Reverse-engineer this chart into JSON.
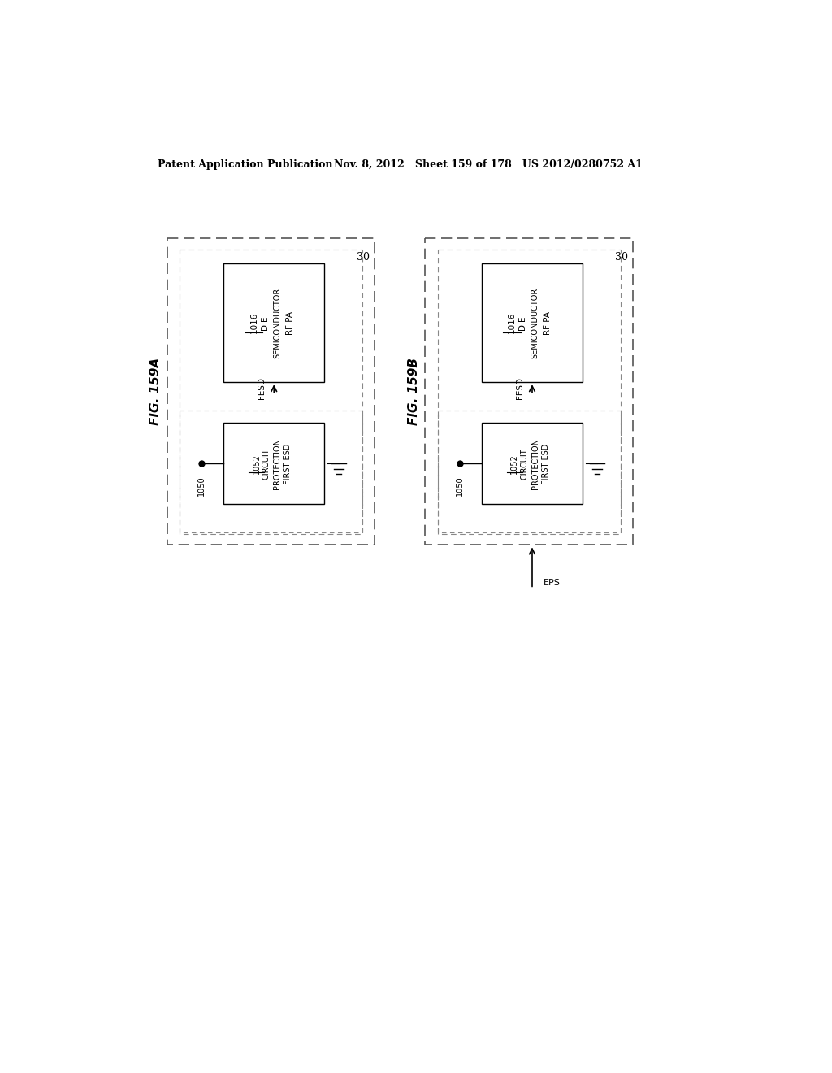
{
  "header_left": "Patent Application Publication",
  "header_right": "Nov. 8, 2012   Sheet 159 of 178   US 2012/0280752 A1",
  "fig_a_label": "FIG. 159A",
  "fig_b_label": "FIG. 159B",
  "outer_label": "30",
  "die_lines": [
    "RF PA",
    "SEMICONDUCTOR",
    "DIE",
    "1016"
  ],
  "esd_lines": [
    "FIRST ESD",
    "PROTECTION",
    "CIRCUIT",
    "1052"
  ],
  "fesd_label": "FESD",
  "eps_label": "EPS",
  "node_label": "1050",
  "bg_color": "#ffffff",
  "line_color": "#000000",
  "text_color": "#000000"
}
